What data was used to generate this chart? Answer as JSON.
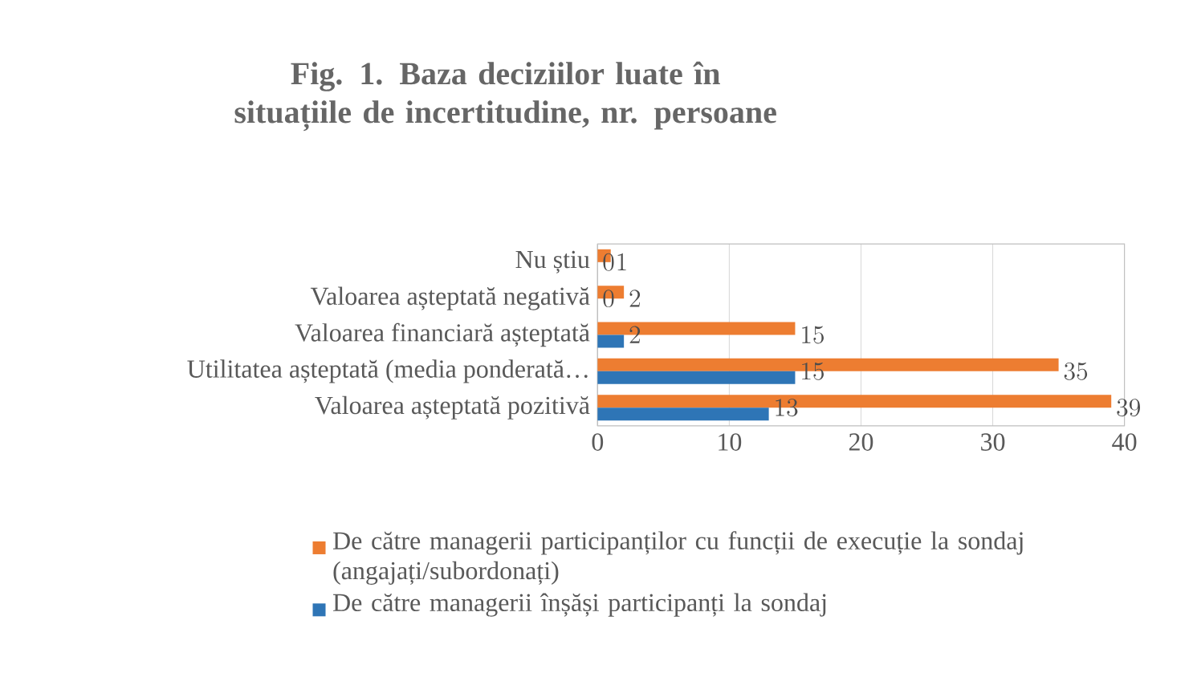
{
  "chart_data": {
    "type": "bar",
    "orientation": "horizontal",
    "title": "Fig. 1. Baza deciziilor luate în situațiile de incertitudine, nr. persoane",
    "categories": [
      "Nu știu",
      "Valoarea așteptată negativă",
      "Valoarea financiară așteptată",
      "Utilitatea așteptată (media ponderată…",
      "Valoarea așteptată pozitivă"
    ],
    "series": [
      {
        "name": "De către managerii participanților cu funcții de execuție la sondaj (angajați/subordonați)",
        "color": "#ed7d31",
        "values": [
          1,
          2,
          15,
          35,
          39
        ]
      },
      {
        "name": "De către managerii înșăși participanți la sondaj",
        "color": "#2e75b6",
        "values": [
          0,
          0,
          2,
          15,
          13
        ]
      }
    ],
    "xlim": [
      0,
      40
    ],
    "xticks": [
      0,
      10,
      20,
      30,
      40
    ],
    "grid": "x",
    "legend": "bottom",
    "data_labels": true
  }
}
